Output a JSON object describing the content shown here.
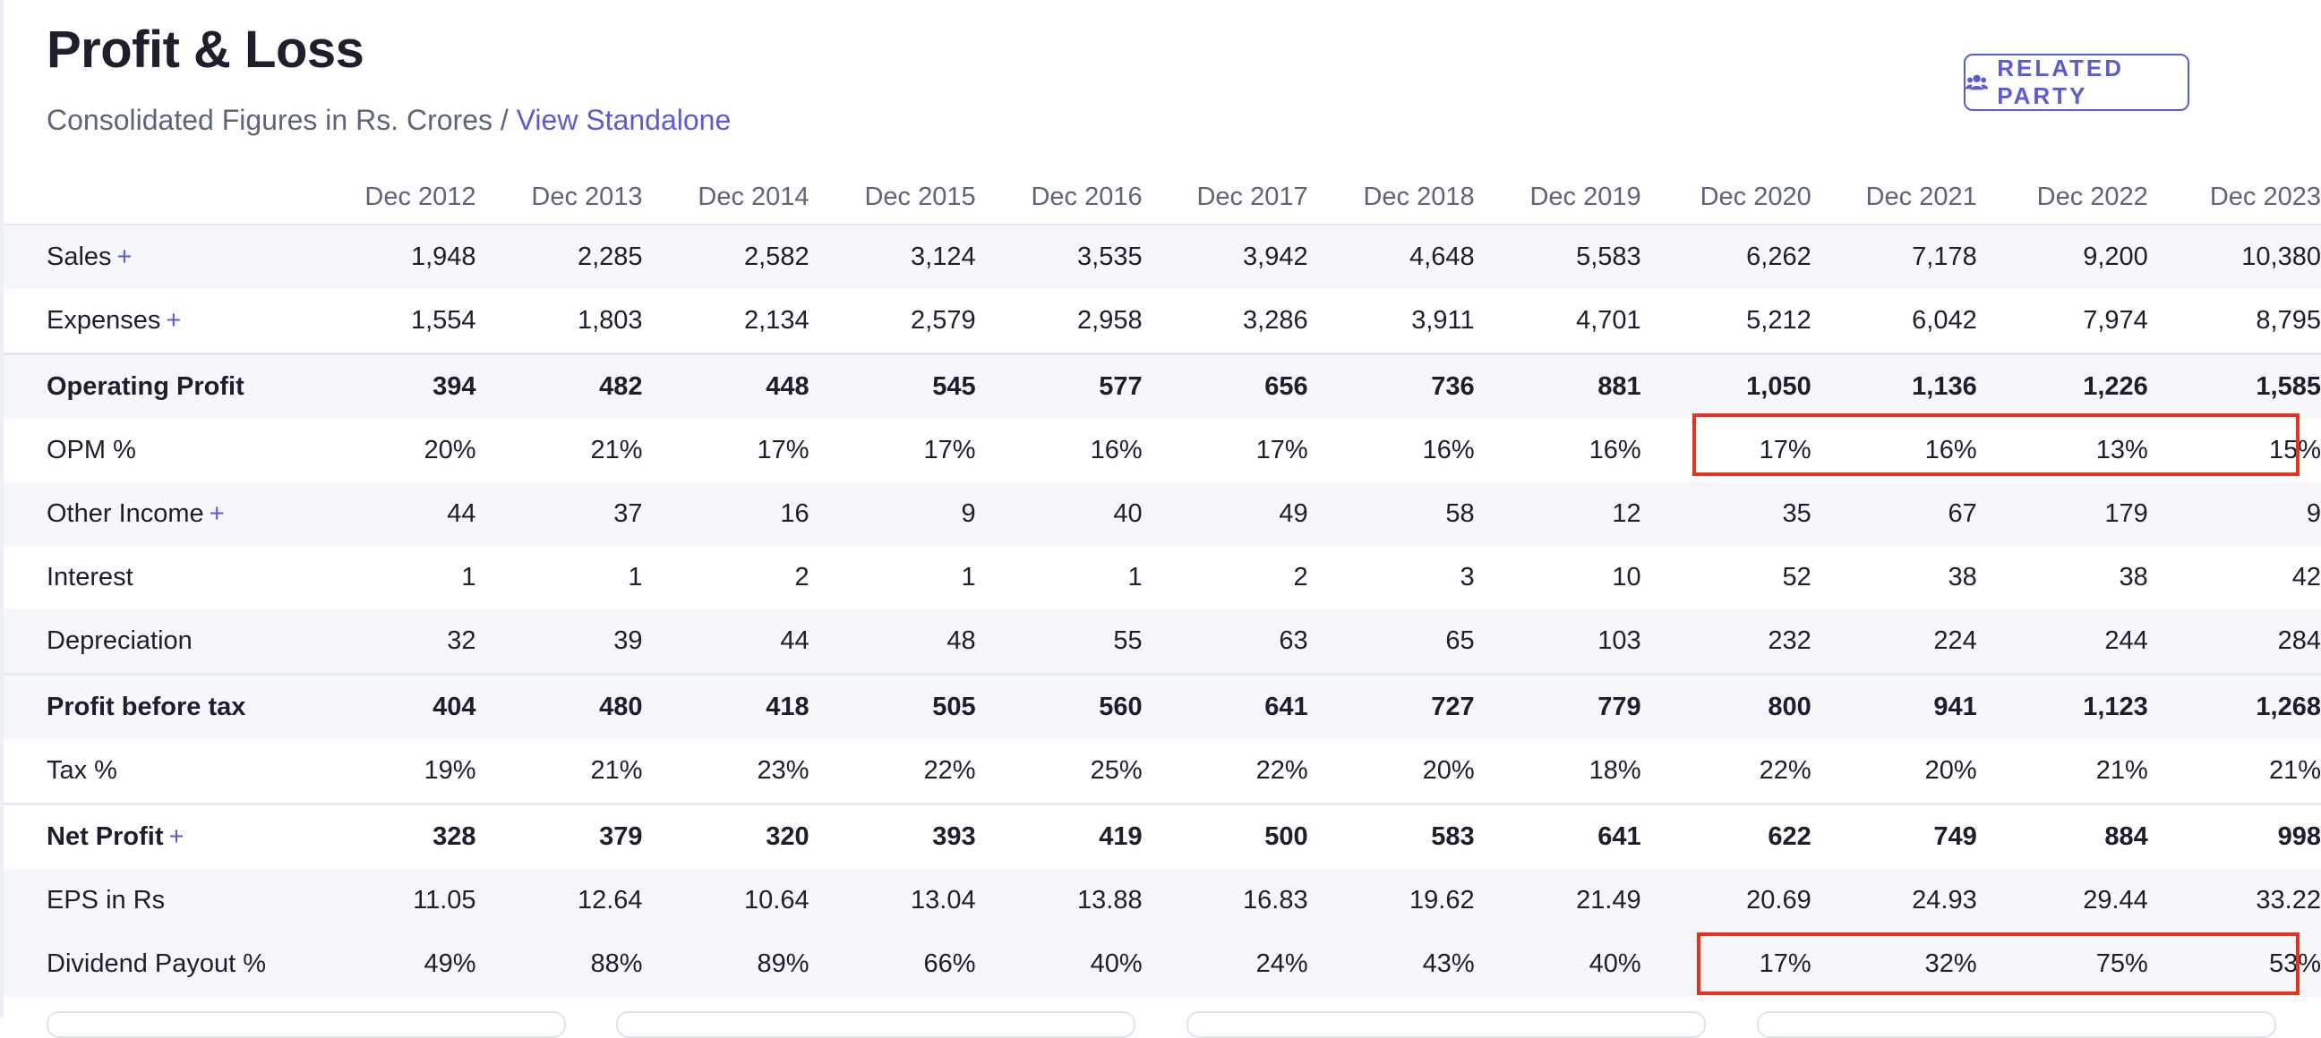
{
  "section": {
    "title": "Profit & Loss",
    "subtitle_prefix": "Consolidated Figures in Rs. Crores /",
    "view_link": "View Standalone",
    "related_party_label": "RELATED PARTY"
  },
  "highlight_color": "#e8321e",
  "accent_color": "#5b5bd6",
  "table": {
    "years": [
      "Dec 2012",
      "Dec 2013",
      "Dec 2014",
      "Dec 2015",
      "Dec 2016",
      "Dec 2017",
      "Dec 2018",
      "Dec 2019",
      "Dec 2020",
      "Dec 2021",
      "Dec 2022",
      "Dec 2023"
    ],
    "rows": [
      {
        "label": "Sales",
        "expandable": true,
        "bold": false,
        "values": [
          "1,948",
          "2,285",
          "2,582",
          "3,124",
          "3,535",
          "3,942",
          "4,648",
          "5,583",
          "6,262",
          "7,178",
          "9,200",
          "10,380"
        ]
      },
      {
        "label": "Expenses",
        "expandable": true,
        "bold": false,
        "values": [
          "1,554",
          "1,803",
          "2,134",
          "2,579",
          "2,958",
          "3,286",
          "3,911",
          "4,701",
          "5,212",
          "6,042",
          "7,974",
          "8,795"
        ]
      },
      {
        "label": "Operating Profit",
        "expandable": false,
        "bold": true,
        "values": [
          "394",
          "482",
          "448",
          "545",
          "577",
          "656",
          "736",
          "881",
          "1,050",
          "1,136",
          "1,226",
          "1,585"
        ]
      },
      {
        "label": "OPM %",
        "expandable": false,
        "bold": false,
        "values": [
          "20%",
          "21%",
          "17%",
          "17%",
          "16%",
          "17%",
          "16%",
          "16%",
          "17%",
          "16%",
          "13%",
          "15%"
        ]
      },
      {
        "label": "Other Income",
        "expandable": true,
        "bold": false,
        "values": [
          "44",
          "37",
          "16",
          "9",
          "40",
          "49",
          "58",
          "12",
          "35",
          "67",
          "179",
          "9"
        ]
      },
      {
        "label": "Interest",
        "expandable": false,
        "bold": false,
        "values": [
          "1",
          "1",
          "2",
          "1",
          "1",
          "2",
          "3",
          "10",
          "52",
          "38",
          "38",
          "42"
        ]
      },
      {
        "label": "Depreciation",
        "expandable": false,
        "bold": false,
        "values": [
          "32",
          "39",
          "44",
          "48",
          "55",
          "63",
          "65",
          "103",
          "232",
          "224",
          "244",
          "284"
        ]
      },
      {
        "label": "Profit before tax",
        "expandable": false,
        "bold": true,
        "values": [
          "404",
          "480",
          "418",
          "505",
          "560",
          "641",
          "727",
          "779",
          "800",
          "941",
          "1,123",
          "1,268"
        ]
      },
      {
        "label": "Tax %",
        "expandable": false,
        "bold": false,
        "values": [
          "19%",
          "21%",
          "23%",
          "22%",
          "25%",
          "22%",
          "20%",
          "18%",
          "22%",
          "20%",
          "21%",
          "21%"
        ]
      },
      {
        "label": "Net Profit",
        "expandable": true,
        "bold": true,
        "values": [
          "328",
          "379",
          "320",
          "393",
          "419",
          "500",
          "583",
          "641",
          "622",
          "749",
          "884",
          "998"
        ]
      },
      {
        "label": "EPS in Rs",
        "expandable": false,
        "bold": false,
        "values": [
          "11.05",
          "12.64",
          "10.64",
          "13.04",
          "13.88",
          "16.83",
          "19.62",
          "21.49",
          "20.69",
          "24.93",
          "29.44",
          "33.22"
        ]
      },
      {
        "label": "Dividend Payout %",
        "expandable": false,
        "bold": false,
        "values": [
          "49%",
          "88%",
          "89%",
          "66%",
          "40%",
          "24%",
          "43%",
          "40%",
          "17%",
          "32%",
          "75%",
          "53%"
        ]
      }
    ]
  }
}
